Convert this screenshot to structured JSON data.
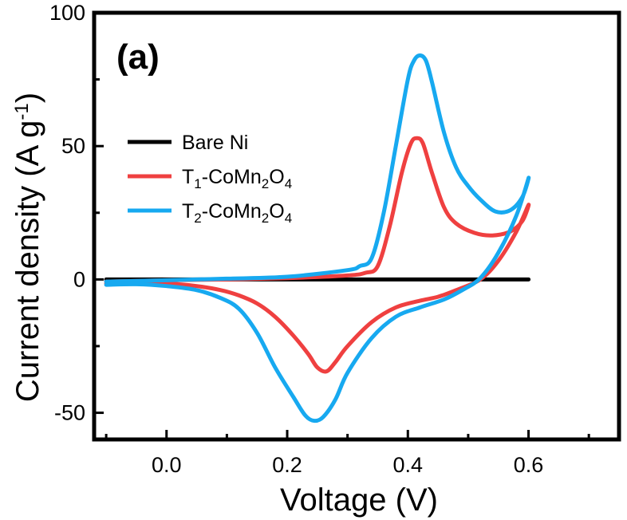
{
  "chart_data": {
    "type": "line",
    "panel_label": "(a)",
    "xlabel": "Voltage (V)",
    "ylabel": {
      "main": "Current density (A g",
      "exponent": "-1",
      "close": ")"
    },
    "xlim": [
      -0.12,
      0.75
    ],
    "ylim": [
      -60,
      100
    ],
    "x_ticks": [
      {
        "value": 0.0,
        "label": "0.0"
      },
      {
        "value": 0.2,
        "label": "0.2"
      },
      {
        "value": 0.4,
        "label": "0.4"
      },
      {
        "value": 0.6,
        "label": "0.6"
      }
    ],
    "y_ticks": [
      {
        "value": -50,
        "label": "-50"
      },
      {
        "value": 0,
        "label": "0"
      },
      {
        "value": 50,
        "label": "50"
      },
      {
        "value": 100,
        "label": "100"
      }
    ],
    "minor_x_ticks": [
      -0.1,
      0.1,
      0.3,
      0.5,
      0.7
    ],
    "minor_y_ticks": [
      -25,
      25,
      75
    ],
    "legend_position": "left",
    "series": [
      {
        "name": "Bare Ni",
        "legend_parts": [
          {
            "text": "Bare Ni",
            "sub": false
          }
        ],
        "color": "#000000",
        "points": [
          [
            -0.1,
            0
          ],
          [
            0.0,
            0
          ],
          [
            0.1,
            0
          ],
          [
            0.2,
            0
          ],
          [
            0.3,
            0
          ],
          [
            0.4,
            0
          ],
          [
            0.5,
            0
          ],
          [
            0.6,
            0
          ]
        ]
      },
      {
        "name": "T1-CoMn2O4",
        "legend_parts": [
          {
            "text": "T",
            "sub": false
          },
          {
            "text": "1",
            "sub": true
          },
          {
            "text": "-CoMn",
            "sub": false
          },
          {
            "text": "2",
            "sub": true
          },
          {
            "text": "O",
            "sub": false
          },
          {
            "text": "4",
            "sub": true
          }
        ],
        "color": "#ef4040",
        "points": [
          [
            -0.1,
            -0.8
          ],
          [
            0.0,
            -0.3
          ],
          [
            0.1,
            0.0
          ],
          [
            0.2,
            0.5
          ],
          [
            0.3,
            1.5
          ],
          [
            0.33,
            2.5
          ],
          [
            0.35,
            5
          ],
          [
            0.37,
            20
          ],
          [
            0.39,
            40
          ],
          [
            0.405,
            51
          ],
          [
            0.415,
            53
          ],
          [
            0.425,
            51
          ],
          [
            0.44,
            40
          ],
          [
            0.46,
            27
          ],
          [
            0.48,
            21
          ],
          [
            0.51,
            17.5
          ],
          [
            0.54,
            16.5
          ],
          [
            0.57,
            18
          ],
          [
            0.59,
            22
          ],
          [
            0.6,
            28
          ],
          [
            0.58,
            18
          ],
          [
            0.55,
            7
          ],
          [
            0.52,
            0
          ],
          [
            0.48,
            -4
          ],
          [
            0.45,
            -6.5
          ],
          [
            0.42,
            -8
          ],
          [
            0.38,
            -10.5
          ],
          [
            0.34,
            -16
          ],
          [
            0.3,
            -25
          ],
          [
            0.28,
            -31
          ],
          [
            0.265,
            -34.5
          ],
          [
            0.25,
            -33
          ],
          [
            0.235,
            -28
          ],
          [
            0.21,
            -21
          ],
          [
            0.18,
            -14
          ],
          [
            0.15,
            -9
          ],
          [
            0.12,
            -6
          ],
          [
            0.09,
            -4
          ],
          [
            0.05,
            -2.5
          ],
          [
            0.0,
            -1.5
          ],
          [
            -0.05,
            -1.2
          ],
          [
            -0.1,
            -1.5
          ]
        ]
      },
      {
        "name": "T2-CoMn2O4",
        "legend_parts": [
          {
            "text": "T",
            "sub": false
          },
          {
            "text": "2",
            "sub": true
          },
          {
            "text": "-CoMn",
            "sub": false
          },
          {
            "text": "2",
            "sub": true
          },
          {
            "text": "O",
            "sub": false
          },
          {
            "text": "4",
            "sub": true
          }
        ],
        "color": "#17a9f0",
        "points": [
          [
            -0.1,
            -0.8
          ],
          [
            0.0,
            -0.3
          ],
          [
            0.1,
            0.3
          ],
          [
            0.2,
            1
          ],
          [
            0.3,
            3.5
          ],
          [
            0.32,
            5
          ],
          [
            0.34,
            8
          ],
          [
            0.36,
            25
          ],
          [
            0.38,
            50
          ],
          [
            0.4,
            75
          ],
          [
            0.41,
            82
          ],
          [
            0.42,
            84
          ],
          [
            0.43,
            82
          ],
          [
            0.44,
            74
          ],
          [
            0.46,
            55
          ],
          [
            0.48,
            42
          ],
          [
            0.5,
            35
          ],
          [
            0.52,
            30
          ],
          [
            0.545,
            25.5
          ],
          [
            0.57,
            26
          ],
          [
            0.59,
            31
          ],
          [
            0.6,
            38
          ],
          [
            0.58,
            24
          ],
          [
            0.55,
            10
          ],
          [
            0.52,
            0.5
          ],
          [
            0.49,
            -4
          ],
          [
            0.46,
            -7.5
          ],
          [
            0.42,
            -10.5
          ],
          [
            0.38,
            -14
          ],
          [
            0.34,
            -22
          ],
          [
            0.3,
            -35
          ],
          [
            0.28,
            -45
          ],
          [
            0.26,
            -51.5
          ],
          [
            0.245,
            -53
          ],
          [
            0.23,
            -51
          ],
          [
            0.21,
            -44
          ],
          [
            0.18,
            -33
          ],
          [
            0.15,
            -20
          ],
          [
            0.12,
            -11
          ],
          [
            0.09,
            -7
          ],
          [
            0.05,
            -4
          ],
          [
            0.0,
            -2.5
          ],
          [
            -0.05,
            -1.8
          ],
          [
            -0.1,
            -2
          ]
        ]
      }
    ]
  }
}
